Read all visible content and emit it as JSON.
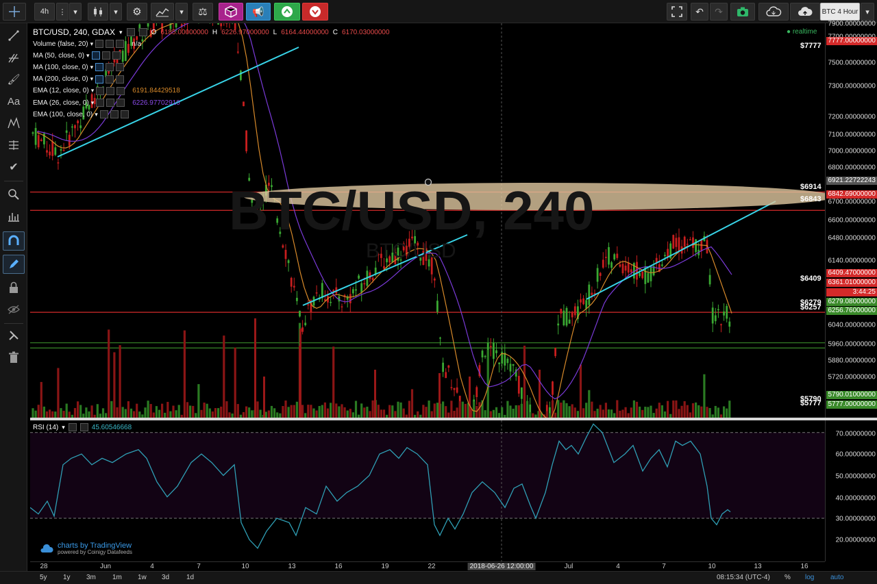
{
  "toolbar": {
    "interval": "4h",
    "chart_label": "BTC 4 Hour"
  },
  "legend": {
    "symbol": "BTC/USD, 240, GDAX",
    "ohlc_o_label": "O",
    "ohlc_o": "6185.00000000",
    "ohlc_h_label": "H",
    "ohlc_h": "6226.97000000",
    "ohlc_l_label": "L",
    "ohlc_l": "6164.44000000",
    "ohlc_c_label": "C",
    "ohlc_c": "6170.03000000",
    "realtime": "realtime",
    "watermark_main": "BTC/USD, 240",
    "watermark_sub": "BTC/USD"
  },
  "indicators": [
    {
      "name": "Volume (false, 20)",
      "value": "n/a"
    },
    {
      "name": "MA (50, close, 0)",
      "value": ""
    },
    {
      "name": "MA (100, close, 0)",
      "value": ""
    },
    {
      "name": "MA (200, close, 0)",
      "value": ""
    },
    {
      "name": "EMA (12, close, 0)",
      "value": "6191.84429518"
    },
    {
      "name": "EMA (26, close, 0)",
      "value": "6226.97702910"
    },
    {
      "name": "EMA (100, close, 0)",
      "value": ""
    }
  ],
  "price_axis": {
    "ticks": [
      "7900.00000000",
      "7700.00000000",
      "7500.00000000",
      "7300.00000000",
      "7200.00000000",
      "7100.00000000",
      "7000.00000000",
      "6800.00000000",
      "6700.00000000",
      "6600.00000000",
      "6480.00000000",
      "6140.00000000",
      "6040.00000000",
      "5960.00000000",
      "5880.00000000",
      "5720.00000000"
    ],
    "tags": [
      {
        "text": "7777.00000000",
        "color": "#d42a2a"
      },
      {
        "text": "6921.22722243",
        "color": "#555555"
      },
      {
        "text": "6842.69000000",
        "color": "#d42a2a"
      },
      {
        "text": "6409.47000000",
        "color": "#d42a2a"
      },
      {
        "text": "6361.01000000",
        "color": "#d42a2a"
      },
      {
        "text": "3:44:25",
        "color": "#d42a2a"
      },
      {
        "text": "6279.08000000",
        "color": "#3a8a2a"
      },
      {
        "text": "6256.76000000",
        "color": "#3a8a2a"
      },
      {
        "text": "5790.01000000",
        "color": "#3a8a2a"
      },
      {
        "text": "5777.00000000",
        "color": "#3a8a2a"
      }
    ]
  },
  "level_marks": [
    "$7777",
    "$6914",
    "$6843",
    "$6409",
    "$6279",
    "$6257",
    "$5790",
    "$5777"
  ],
  "rsi": {
    "label": "RSI (14)",
    "value": "45.60546668",
    "ticks": [
      "70.00000000",
      "60.00000000",
      "50.00000000",
      "40.00000000",
      "30.00000000",
      "20.00000000"
    ]
  },
  "time_axis": {
    "ticks": [
      "28",
      "Jun",
      "4",
      "7",
      "10",
      "13",
      "16",
      "19",
      "22",
      "2018-06-26 12:00:00",
      "Jul",
      "4",
      "7",
      "10",
      "13",
      "16"
    ]
  },
  "attribution": {
    "line1": "charts by TradingView",
    "line2": "powered by Coinigy Datafeeds"
  },
  "bottom": {
    "ranges": [
      "5y",
      "1y",
      "3m",
      "1m",
      "1w",
      "3d",
      "1d"
    ],
    "clock": "08:15:34 (UTC-4)",
    "pct": "%",
    "log": "log",
    "auto": "auto"
  },
  "colors": {
    "up": "#3aa832",
    "down": "#c81e1e",
    "trend": "#38d4e8",
    "ellipse": "#e0c8a0",
    "rsi_line": "#2f9fb5",
    "rsi_band": "#120314",
    "ema12": "#d88a2a",
    "ema26": "#7a3ad8"
  }
}
